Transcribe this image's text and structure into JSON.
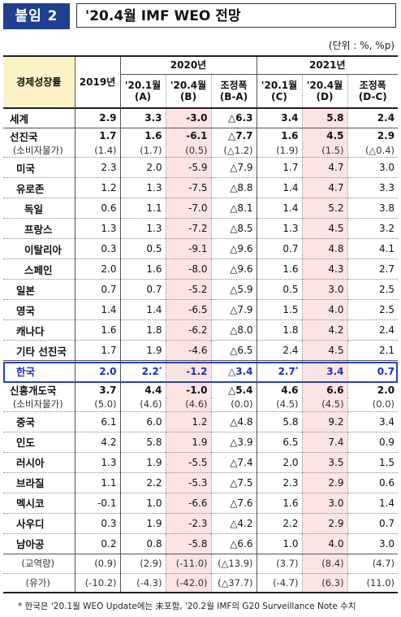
{
  "header": {
    "badge": "붙임 2",
    "title": "'20.4월 IMF WEO 전망"
  },
  "unit": "(단위 : %, %p)",
  "columns": {
    "label": "경제성장률",
    "y2019": "2019년",
    "g2020": "2020년",
    "g2021": "2021년",
    "c20_jan": "'20.1월\n(A)",
    "c20_apr": "'20.4월\n(B)",
    "c20_adj": "조정폭\n(B-A)",
    "c21_jan": "'20.1월\n(C)",
    "c21_apr": "'20.4월\n(D)",
    "c21_adj": "조정폭\n(D-C)"
  },
  "rows": [
    {
      "label": "세계",
      "v": [
        "2.9",
        "3.3",
        "-3.0",
        "△6.3",
        "3.4",
        "5.8",
        "2.4"
      ]
    },
    {
      "label": "선진국",
      "v": [
        "1.7",
        "1.6",
        "-6.1",
        "△7.7",
        "1.6",
        "4.5",
        "2.9"
      ]
    },
    {
      "label": "(소비자물가)",
      "v": [
        "(1.4)",
        "(1.7)",
        "(0.5)",
        "(△1.2)",
        "(1.9)",
        "(1.5)",
        "(△0.4)"
      ]
    },
    {
      "label": "미국",
      "v": [
        "2.3",
        "2.0",
        "-5.9",
        "△7.9",
        "1.7",
        "4.7",
        "3.0"
      ]
    },
    {
      "label": "유로존",
      "v": [
        "1.2",
        "1.3",
        "-7.5",
        "△8.8",
        "1.4",
        "4.7",
        "3.3"
      ]
    },
    {
      "label": "독일",
      "v": [
        "0.6",
        "1.1",
        "-7.0",
        "△8.1",
        "1.4",
        "5.2",
        "3.8"
      ]
    },
    {
      "label": "프랑스",
      "v": [
        "1.3",
        "1.3",
        "-7.2",
        "△8.5",
        "1.3",
        "4.5",
        "3.2"
      ]
    },
    {
      "label": "이탈리아",
      "v": [
        "0.3",
        "0.5",
        "-9.1",
        "△9.6",
        "0.7",
        "4.8",
        "4.1"
      ]
    },
    {
      "label": "스페인",
      "v": [
        "2.0",
        "1.6",
        "-8.0",
        "△9.6",
        "1.6",
        "4.3",
        "2.7"
      ]
    },
    {
      "label": "일본",
      "v": [
        "0.7",
        "0.7",
        "-5.2",
        "△5.9",
        "0.5",
        "3.0",
        "2.5"
      ]
    },
    {
      "label": "영국",
      "v": [
        "1.4",
        "1.4",
        "-6.5",
        "△7.9",
        "1.5",
        "4.0",
        "2.5"
      ]
    },
    {
      "label": "캐나다",
      "v": [
        "1.6",
        "1.8",
        "-6.2",
        "△8.0",
        "1.8",
        "4.2",
        "2.4"
      ]
    },
    {
      "label": "기타 선진국",
      "v": [
        "1.7",
        "1.9",
        "-4.6",
        "△6.5",
        "2.4",
        "4.5",
        "2.1"
      ]
    },
    {
      "label": "한국",
      "v": [
        "2.0",
        "2.2",
        "-1.2",
        "△3.4",
        "2.7",
        "3.4",
        "0.7"
      ],
      "star": "*"
    },
    {
      "label": "신흥개도국",
      "v": [
        "3.7",
        "4.4",
        "-1.0",
        "△5.4",
        "4.6",
        "6.6",
        "2.0"
      ]
    },
    {
      "label": "(소비자물가)",
      "v": [
        "(5.0)",
        "(4.6)",
        "(4.6)",
        "(0.0)",
        "(4.5)",
        "(4.5)",
        "(0.0)"
      ]
    },
    {
      "label": "중국",
      "v": [
        "6.1",
        "6.0",
        "1.2",
        "△4.8",
        "5.8",
        "9.2",
        "3.4"
      ]
    },
    {
      "label": "인도",
      "v": [
        "4.2",
        "5.8",
        "1.9",
        "△3.9",
        "6.5",
        "7.4",
        "0.9"
      ]
    },
    {
      "label": "러시아",
      "v": [
        "1.3",
        "1.9",
        "-5.5",
        "△7.4",
        "2.0",
        "3.5",
        "1.5"
      ]
    },
    {
      "label": "브라질",
      "v": [
        "1.1",
        "2.2",
        "-5.3",
        "△7.5",
        "2.3",
        "2.9",
        "0.6"
      ]
    },
    {
      "label": "멕시코",
      "v": [
        "-0.1",
        "1.0",
        "-6.6",
        "△7.6",
        "1.6",
        "3.0",
        "1.4"
      ]
    },
    {
      "label": "사우디",
      "v": [
        "0.3",
        "1.9",
        "-2.3",
        "△4.2",
        "2.2",
        "2.9",
        "0.7"
      ]
    },
    {
      "label": "남아공",
      "v": [
        "0.2",
        "0.8",
        "-5.8",
        "△6.6",
        "1.0",
        "4.0",
        "3.0"
      ]
    },
    {
      "label": "(교역량)",
      "v": [
        "(0.9)",
        "(2.9)",
        "(-11.0)",
        "(△13.9)",
        "(3.7)",
        "(8.4)",
        "(4.7)"
      ]
    },
    {
      "label": "(유가)",
      "v": [
        "(-10.2)",
        "(-4.3)",
        "(-42.0)",
        "(△37.7)",
        "(-4.7)",
        "(6.3)",
        "(11.0)"
      ]
    }
  ],
  "note": "* 한국은 '20.1월 WEO Update에는 未포함, '20.2월 IMF의 G20 Surveillance Note 수치"
}
